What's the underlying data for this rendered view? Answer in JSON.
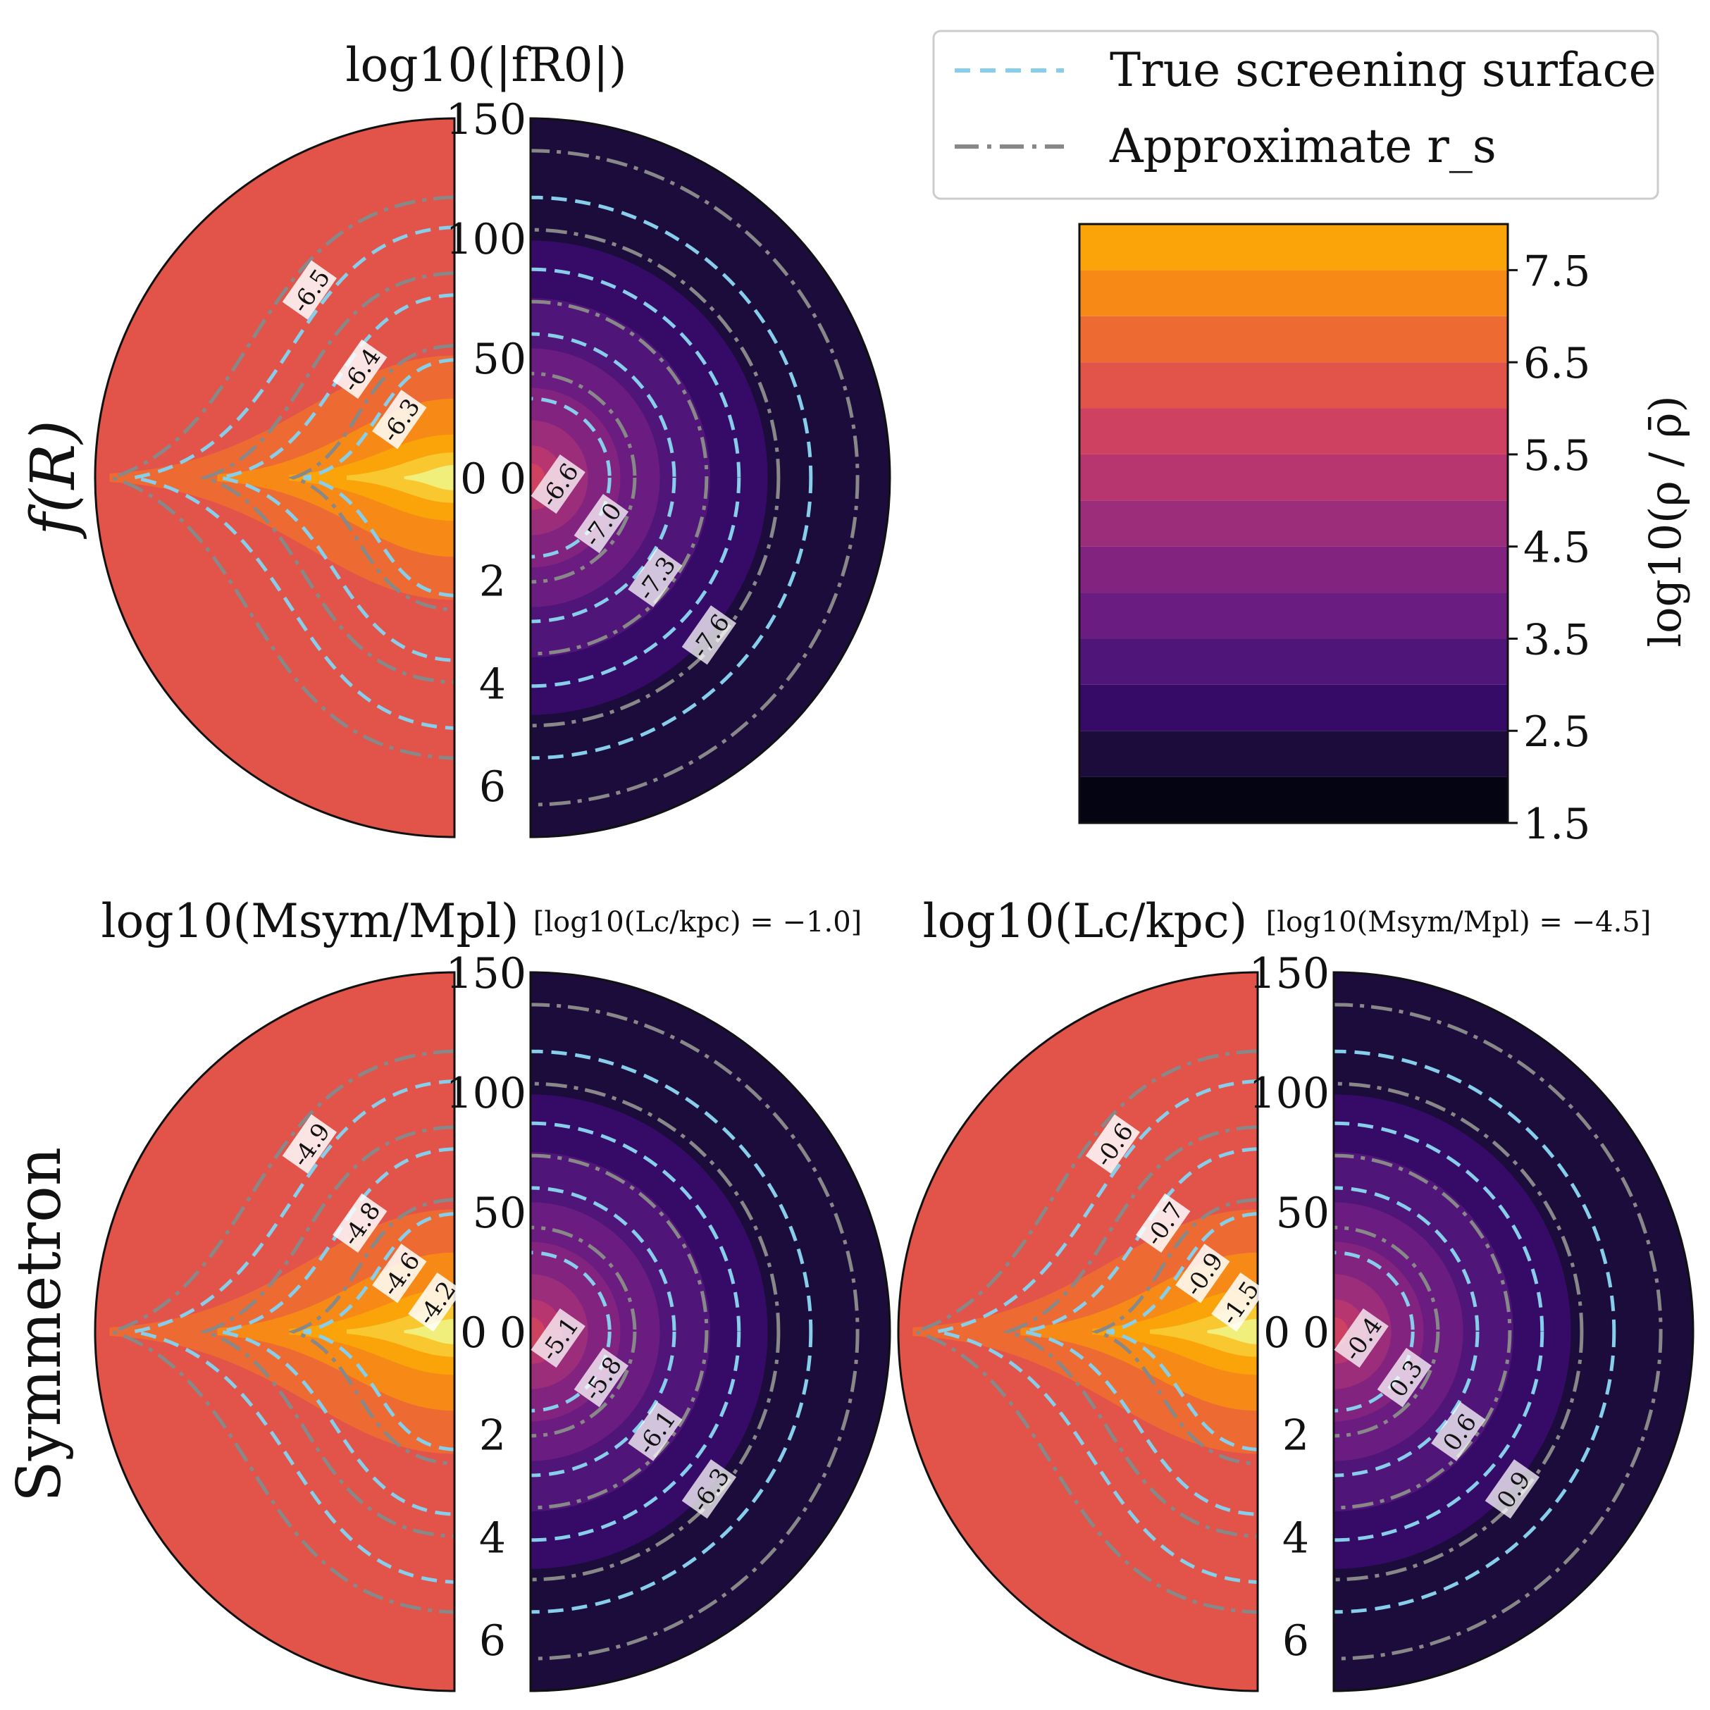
{
  "legend": {
    "true_surface": "True screening surface",
    "approx_rs": "Approximate r_s"
  },
  "colors": {
    "colorbar_levels": [
      "#040413",
      "#1b0c3c",
      "#360a67",
      "#501578",
      "#6a1c80",
      "#82237f",
      "#9c2d7a",
      "#b7366f",
      "#cf4160",
      "#e2534a",
      "#ed6a32",
      "#f78a17",
      "#fba40a",
      "#f9c830",
      "#f1ef7b"
    ],
    "true_surface": "#87ceeb",
    "approx_rs": "#888888"
  },
  "row_labels": {
    "top": "f(R)",
    "bottom": "Symmetron"
  },
  "panels": [
    {
      "title": "log10(|fR0|)",
      "subtitle": "",
      "left_ticks": [
        "0",
        "2",
        "4",
        "6"
      ],
      "right_ticks": [
        "0",
        "50",
        "100",
        "150"
      ],
      "left_contour_labels": [
        "-6.5",
        "-6.4",
        "-6.3"
      ],
      "right_contour_labels": [
        "-6.6",
        "-7.0",
        "-7.3",
        "-7.6"
      ]
    },
    {
      "title": "log10(Msym/Mpl)",
      "subtitle": "[log10(Lc/kpc) = −1.0]",
      "left_ticks": [
        "0",
        "2",
        "4",
        "6"
      ],
      "right_ticks": [
        "0",
        "50",
        "100",
        "150"
      ],
      "left_contour_labels": [
        "-4.9",
        "-4.8",
        "-4.6",
        "-4.2"
      ],
      "right_contour_labels": [
        "-5.1",
        "-5.8",
        "-6.1",
        "-6.3"
      ]
    },
    {
      "title": "log10(Lc/kpc)",
      "subtitle": "[log10(Msym/Mpl) = −4.5]",
      "left_ticks": [
        "0",
        "2",
        "4",
        "6"
      ],
      "right_ticks": [
        "0",
        "50",
        "100",
        "150"
      ],
      "left_contour_labels": [
        "-0.6",
        "-0.7",
        "-0.9",
        "-1.5"
      ],
      "right_contour_labels": [
        "-0.4",
        "0.3",
        "0.6",
        "0.9"
      ]
    }
  ],
  "colorbar": {
    "label": "log10(ρ / ρ̄)",
    "ticks": [
      "1.5",
      "2.5",
      "3.5",
      "4.5",
      "5.5",
      "6.5",
      "7.5"
    ]
  },
  "chart_data": {
    "type": "heatmap",
    "title": "",
    "colorbar": {
      "label": "log10(ρ / ρ̄)",
      "range": [
        1.5,
        8.0
      ],
      "levels": [
        1.5,
        2.0,
        2.5,
        3.0,
        3.5,
        4.0,
        4.5,
        5.0,
        5.5,
        6.0,
        6.5,
        7.0,
        7.5,
        8.0
      ],
      "ticks": [
        1.5,
        2.5,
        3.5,
        4.5,
        5.5,
        6.5,
        7.5
      ]
    },
    "panels": [
      {
        "row": "f(R)",
        "parameter": "log10(|fR0|)",
        "left_axis_range_kpc": [
          0,
          7
        ],
        "right_axis_range_kpc": [
          0,
          150
        ],
        "left_contour_values": [
          -6.5,
          -6.4,
          -6.3
        ],
        "right_contour_values": [
          -6.6,
          -7.0,
          -7.3,
          -7.6
        ]
      },
      {
        "row": "Symmetron",
        "parameter": "log10(Msym/Mpl)",
        "fixed": "log10(Lc/kpc) = −1.0",
        "left_axis_range_kpc": [
          0,
          7
        ],
        "right_axis_range_kpc": [
          0,
          150
        ],
        "left_contour_values": [
          -4.9,
          -4.8,
          -4.6,
          -4.2
        ],
        "right_contour_values": [
          -5.1,
          -5.8,
          -6.1,
          -6.3
        ]
      },
      {
        "row": "Symmetron",
        "parameter": "log10(Lc/kpc)",
        "fixed": "log10(Msym/Mpl) = −4.5",
        "left_axis_range_kpc": [
          0,
          7
        ],
        "right_axis_range_kpc": [
          0,
          150
        ],
        "left_contour_values": [
          -0.6,
          -0.7,
          -0.9,
          -1.5
        ],
        "right_contour_values": [
          -0.4,
          0.3,
          0.6,
          0.9
        ]
      }
    ],
    "legend": [
      "True screening surface",
      "Approximate r_s"
    ]
  }
}
